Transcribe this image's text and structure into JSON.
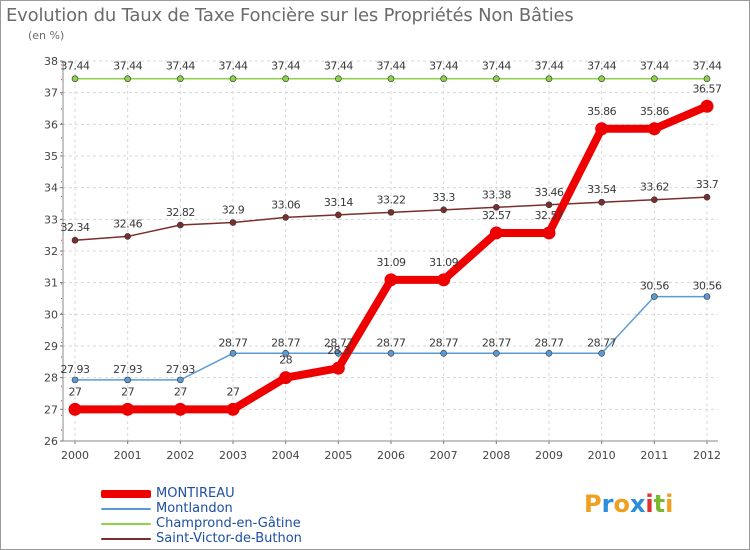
{
  "chart_data": {
    "type": "line",
    "title": "Evolution du Taux de Taxe Foncière sur les Propriétés Non Bâties",
    "subtitle": "(en %)",
    "xlabel": "",
    "ylabel": "(en %)",
    "x": [
      "2000",
      "2001",
      "2002",
      "2003",
      "2004",
      "2005",
      "2006",
      "2007",
      "2008",
      "2009",
      "2010",
      "2011",
      "2012"
    ],
    "ylim": [
      26,
      38
    ],
    "yticks": [
      "26",
      "27",
      "28",
      "29",
      "30",
      "31",
      "32",
      "33",
      "34",
      "35",
      "36",
      "37",
      "38"
    ],
    "grid": true,
    "legend_position": "bottom-left",
    "series": [
      {
        "name": "MONTIREAU",
        "color": "#ee0000",
        "values": [
          27,
          27,
          27,
          27,
          28,
          28.3,
          31.09,
          31.09,
          32.57,
          32.57,
          35.86,
          35.86,
          36.57
        ],
        "labels": [
          "27",
          "27",
          "27",
          "27",
          "28",
          "28.3",
          "31.09",
          "31.09",
          "32.57",
          "32.57",
          "35.86",
          "35.86",
          "36.57"
        ]
      },
      {
        "name": "Montlandon",
        "color": "#5b9bd5",
        "values": [
          27.93,
          27.93,
          27.93,
          28.77,
          28.77,
          28.77,
          28.77,
          28.77,
          28.77,
          28.77,
          28.77,
          30.56,
          30.56
        ],
        "labels": [
          "27.93",
          "27.93",
          "27.93",
          "28.77",
          "28.77",
          "28.77",
          "28.77",
          "28.77",
          "28.77",
          "28.77",
          "28.77",
          "30.56",
          "30.56"
        ]
      },
      {
        "name": "Champrond-en-Gâtine",
        "color": "#8cd24a",
        "values": [
          37.44,
          37.44,
          37.44,
          37.44,
          37.44,
          37.44,
          37.44,
          37.44,
          37.44,
          37.44,
          37.44,
          37.44,
          37.44
        ],
        "labels": [
          "37.44",
          "37.44",
          "37.44",
          "37.44",
          "37.44",
          "37.44",
          "37.44",
          "37.44",
          "37.44",
          "37.44",
          "37.44",
          "37.44",
          "37.44"
        ]
      },
      {
        "name": "Saint-Victor-de-Buthon",
        "color": "#7a2e2e",
        "values": [
          32.34,
          32.46,
          32.82,
          32.9,
          33.06,
          33.14,
          33.22,
          33.3,
          33.38,
          33.46,
          33.54,
          33.62,
          33.7
        ],
        "labels": [
          "32.34",
          "32.46",
          "32.82",
          "32.9",
          "33.06",
          "33.14",
          "33.22",
          "33.3",
          "33.38",
          "33.46",
          "33.54",
          "33.62",
          "33.7"
        ]
      }
    ]
  },
  "logo": {
    "letters": [
      "P",
      "r",
      "o",
      "x",
      "i",
      "t",
      "i"
    ],
    "colors": [
      "#f0a020",
      "#2a8fd8",
      "#f0a020",
      "#2a8fd8",
      "#e03030",
      "#7ab830",
      "#f0a020"
    ]
  }
}
